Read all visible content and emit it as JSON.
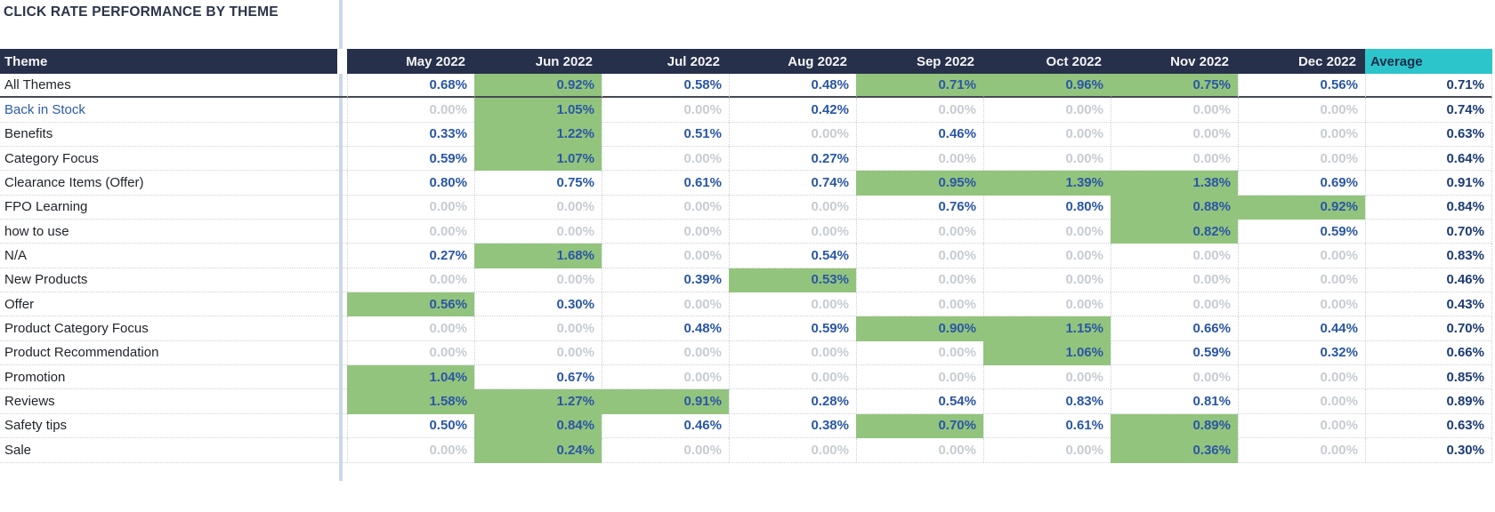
{
  "title": "CLICK RATE PERFORMANCE BY THEME",
  "table": {
    "theme_header": "Theme",
    "month_headers": [
      "May 2022",
      "Jun 2022",
      "Jul 2022",
      "Aug 2022",
      "Sep 2022",
      "Oct 2022",
      "Nov 2022",
      "Dec 2022"
    ],
    "average_header": "Average",
    "rows": [
      {
        "theme": "All Themes",
        "link": false,
        "divider": true,
        "values": [
          "0.68%",
          "0.92%",
          "0.58%",
          "0.48%",
          "0.71%",
          "0.96%",
          "0.75%",
          "0.56%"
        ],
        "highlight": [
          false,
          true,
          false,
          false,
          true,
          true,
          true,
          false
        ],
        "average": "0.71%"
      },
      {
        "theme": "Back in Stock",
        "link": true,
        "divider": false,
        "values": [
          "0.00%",
          "1.05%",
          "0.00%",
          "0.42%",
          "0.00%",
          "0.00%",
          "0.00%",
          "0.00%"
        ],
        "highlight": [
          false,
          true,
          false,
          false,
          false,
          false,
          false,
          false
        ],
        "average": "0.74%"
      },
      {
        "theme": "Benefits",
        "link": false,
        "divider": false,
        "values": [
          "0.33%",
          "1.22%",
          "0.51%",
          "0.00%",
          "0.46%",
          "0.00%",
          "0.00%",
          "0.00%"
        ],
        "highlight": [
          false,
          true,
          false,
          false,
          false,
          false,
          false,
          false
        ],
        "average": "0.63%"
      },
      {
        "theme": "Category Focus",
        "link": false,
        "divider": false,
        "values": [
          "0.59%",
          "1.07%",
          "0.00%",
          "0.27%",
          "0.00%",
          "0.00%",
          "0.00%",
          "0.00%"
        ],
        "highlight": [
          false,
          true,
          false,
          false,
          false,
          false,
          false,
          false
        ],
        "average": "0.64%"
      },
      {
        "theme": "Clearance Items (Offer)",
        "link": false,
        "divider": false,
        "values": [
          "0.80%",
          "0.75%",
          "0.61%",
          "0.74%",
          "0.95%",
          "1.39%",
          "1.38%",
          "0.69%"
        ],
        "highlight": [
          false,
          false,
          false,
          false,
          true,
          true,
          true,
          false
        ],
        "average": "0.91%"
      },
      {
        "theme": "FPO Learning",
        "link": false,
        "divider": false,
        "values": [
          "0.00%",
          "0.00%",
          "0.00%",
          "0.00%",
          "0.76%",
          "0.80%",
          "0.88%",
          "0.92%"
        ],
        "highlight": [
          false,
          false,
          false,
          false,
          false,
          false,
          true,
          true
        ],
        "average": "0.84%"
      },
      {
        "theme": "how to use",
        "link": false,
        "divider": false,
        "values": [
          "0.00%",
          "0.00%",
          "0.00%",
          "0.00%",
          "0.00%",
          "0.00%",
          "0.82%",
          "0.59%"
        ],
        "highlight": [
          false,
          false,
          false,
          false,
          false,
          false,
          true,
          false
        ],
        "average": "0.70%"
      },
      {
        "theme": "N/A",
        "link": false,
        "divider": false,
        "values": [
          "0.27%",
          "1.68%",
          "0.00%",
          "0.54%",
          "0.00%",
          "0.00%",
          "0.00%",
          "0.00%"
        ],
        "highlight": [
          false,
          true,
          false,
          false,
          false,
          false,
          false,
          false
        ],
        "average": "0.83%"
      },
      {
        "theme": "New Products",
        "link": false,
        "divider": false,
        "values": [
          "0.00%",
          "0.00%",
          "0.39%",
          "0.53%",
          "0.00%",
          "0.00%",
          "0.00%",
          "0.00%"
        ],
        "highlight": [
          false,
          false,
          false,
          true,
          false,
          false,
          false,
          false
        ],
        "average": "0.46%"
      },
      {
        "theme": "Offer",
        "link": false,
        "divider": false,
        "values": [
          "0.56%",
          "0.30%",
          "0.00%",
          "0.00%",
          "0.00%",
          "0.00%",
          "0.00%",
          "0.00%"
        ],
        "highlight": [
          true,
          false,
          false,
          false,
          false,
          false,
          false,
          false
        ],
        "average": "0.43%"
      },
      {
        "theme": "Product Category Focus",
        "link": false,
        "divider": false,
        "values": [
          "0.00%",
          "0.00%",
          "0.48%",
          "0.59%",
          "0.90%",
          "1.15%",
          "0.66%",
          "0.44%"
        ],
        "highlight": [
          false,
          false,
          false,
          false,
          true,
          true,
          false,
          false
        ],
        "average": "0.70%"
      },
      {
        "theme": "Product Recommendation",
        "link": false,
        "divider": false,
        "values": [
          "0.00%",
          "0.00%",
          "0.00%",
          "0.00%",
          "0.00%",
          "1.06%",
          "0.59%",
          "0.32%"
        ],
        "highlight": [
          false,
          false,
          false,
          false,
          false,
          true,
          false,
          false
        ],
        "average": "0.66%"
      },
      {
        "theme": "Promotion",
        "link": false,
        "divider": false,
        "values": [
          "1.04%",
          "0.67%",
          "0.00%",
          "0.00%",
          "0.00%",
          "0.00%",
          "0.00%",
          "0.00%"
        ],
        "highlight": [
          true,
          false,
          false,
          false,
          false,
          false,
          false,
          false
        ],
        "average": "0.85%"
      },
      {
        "theme": "Reviews",
        "link": false,
        "divider": false,
        "values": [
          "1.58%",
          "1.27%",
          "0.91%",
          "0.28%",
          "0.54%",
          "0.83%",
          "0.81%",
          "0.00%"
        ],
        "highlight": [
          true,
          true,
          true,
          false,
          false,
          false,
          false,
          false
        ],
        "average": "0.89%"
      },
      {
        "theme": "Safety tips",
        "link": false,
        "divider": false,
        "values": [
          "0.50%",
          "0.84%",
          "0.46%",
          "0.38%",
          "0.70%",
          "0.61%",
          "0.89%",
          "0.00%"
        ],
        "highlight": [
          false,
          true,
          false,
          false,
          true,
          false,
          true,
          false
        ],
        "average": "0.63%"
      },
      {
        "theme": "Sale",
        "link": false,
        "divider": false,
        "values": [
          "0.00%",
          "0.24%",
          "0.00%",
          "0.00%",
          "0.00%",
          "0.00%",
          "0.36%",
          "0.00%"
        ],
        "highlight": [
          false,
          true,
          false,
          false,
          false,
          false,
          true,
          false
        ],
        "average": "0.30%"
      }
    ]
  },
  "colors": {
    "header_bg": "#27304a",
    "header_text": "#f4f5f7",
    "average_header_bg": "#2cc5cb",
    "average_header_text": "#1e2b4a",
    "highlight_green": "#93c47d",
    "value_blue": "#2a57a5",
    "zero_gray": "#c7ccd2",
    "average_value_text": "#1c3c74",
    "theme_text": "#20242b",
    "link_blue": "#2b5ca8",
    "separator_line": "#ccd8e7",
    "divider_line": "#464a52"
  },
  "chart_data": {
    "type": "table",
    "title": "CLICK RATE PERFORMANCE BY THEME",
    "columns": [
      "Theme",
      "May 2022",
      "Jun 2022",
      "Jul 2022",
      "Aug 2022",
      "Sep 2022",
      "Oct 2022",
      "Nov 2022",
      "Dec 2022",
      "Average"
    ],
    "unit": "percent",
    "rows": [
      [
        "All Themes",
        0.68,
        0.92,
        0.58,
        0.48,
        0.71,
        0.96,
        0.75,
        0.56,
        0.71
      ],
      [
        "Back in Stock",
        0.0,
        1.05,
        0.0,
        0.42,
        0.0,
        0.0,
        0.0,
        0.0,
        0.74
      ],
      [
        "Benefits",
        0.33,
        1.22,
        0.51,
        0.0,
        0.46,
        0.0,
        0.0,
        0.0,
        0.63
      ],
      [
        "Category Focus",
        0.59,
        1.07,
        0.0,
        0.27,
        0.0,
        0.0,
        0.0,
        0.0,
        0.64
      ],
      [
        "Clearance Items (Offer)",
        0.8,
        0.75,
        0.61,
        0.74,
        0.95,
        1.39,
        1.38,
        0.69,
        0.91
      ],
      [
        "FPO Learning",
        0.0,
        0.0,
        0.0,
        0.0,
        0.76,
        0.8,
        0.88,
        0.92,
        0.84
      ],
      [
        "how to use",
        0.0,
        0.0,
        0.0,
        0.0,
        0.0,
        0.0,
        0.82,
        0.59,
        0.7
      ],
      [
        "N/A",
        0.27,
        1.68,
        0.0,
        0.54,
        0.0,
        0.0,
        0.0,
        0.0,
        0.83
      ],
      [
        "New Products",
        0.0,
        0.0,
        0.39,
        0.53,
        0.0,
        0.0,
        0.0,
        0.0,
        0.46
      ],
      [
        "Offer",
        0.56,
        0.3,
        0.0,
        0.0,
        0.0,
        0.0,
        0.0,
        0.0,
        0.43
      ],
      [
        "Product Category Focus",
        0.0,
        0.0,
        0.48,
        0.59,
        0.9,
        1.15,
        0.66,
        0.44,
        0.7
      ],
      [
        "Product Recommendation",
        0.0,
        0.0,
        0.0,
        0.0,
        0.0,
        1.06,
        0.59,
        0.32,
        0.66
      ],
      [
        "Promotion",
        1.04,
        0.67,
        0.0,
        0.0,
        0.0,
        0.0,
        0.0,
        0.0,
        0.85
      ],
      [
        "Reviews",
        1.58,
        1.27,
        0.91,
        0.28,
        0.54,
        0.83,
        0.81,
        0.0,
        0.89
      ],
      [
        "Safety tips",
        0.5,
        0.84,
        0.46,
        0.38,
        0.7,
        0.61,
        0.89,
        0.0,
        0.63
      ],
      [
        "Sale",
        0.0,
        0.24,
        0.0,
        0.0,
        0.0,
        0.0,
        0.36,
        0.0,
        0.3
      ]
    ],
    "legend_position": "none",
    "grid": "dotted row/column separators",
    "notes": "Green cell background = conditional highlight; Average column has cyan header; zero values rendered gray"
  }
}
